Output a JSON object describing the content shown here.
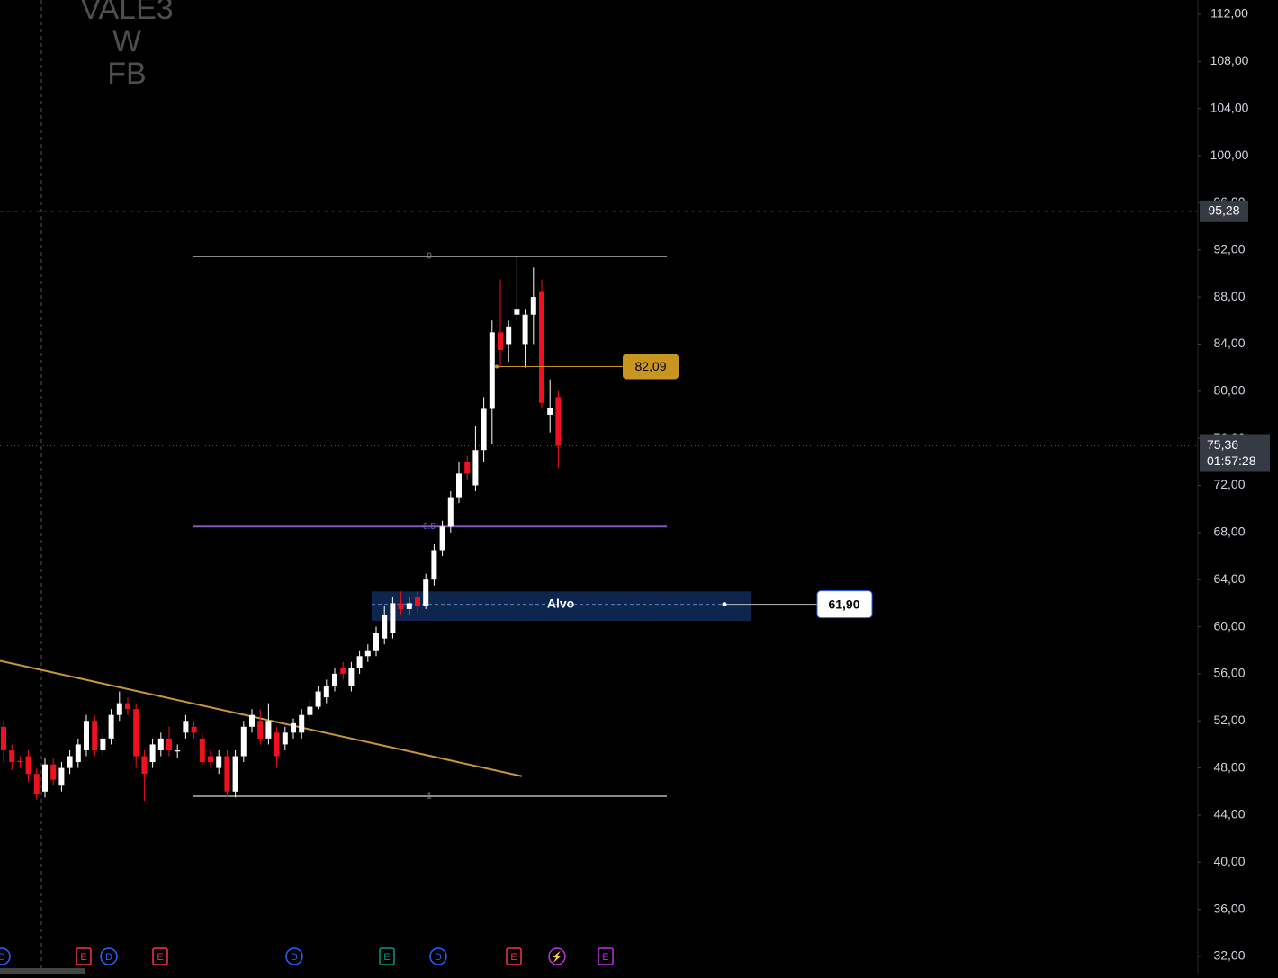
{
  "chart_data": {
    "type": "candlestick",
    "title_lines": [
      "VALE3",
      "W",
      "FB"
    ],
    "open": [
      51.5,
      49.5,
      48.6,
      49,
      47.5,
      46,
      48.3,
      46.5,
      48,
      48.5,
      49.5,
      52,
      49.5,
      50.5,
      52.5,
      53.5,
      53,
      49,
      48.5,
      49.5,
      50.5,
      49.4,
      51,
      51.5,
      50.5,
      49,
      48,
      49,
      46,
      49,
      51.5,
      52,
      50.5,
      51,
      50,
      51,
      51,
      52.5,
      53.2,
      54,
      55,
      56.5,
      55,
      56.5,
      57.5,
      58,
      59,
      59.5,
      62,
      61.5,
      62.5,
      61.8,
      64,
      66.5,
      68.5,
      71,
      74,
      72,
      75,
      78.5,
      85,
      84,
      86.5,
      84,
      86.5,
      88.5,
      78,
      79.5
    ],
    "high": [
      52,
      50,
      49,
      49.5,
      48,
      48.8,
      48.8,
      48.5,
      49.5,
      50.5,
      52.5,
      52.5,
      51,
      53,
      54.5,
      54,
      53.5,
      49.5,
      50.5,
      51,
      51.5,
      50,
      52.5,
      52,
      51,
      49.5,
      49.5,
      49.5,
      49.5,
      52,
      53,
      53,
      53.5,
      51.5,
      51.5,
      52.2,
      53,
      53.8,
      55,
      55.5,
      56.5,
      57,
      57,
      58,
      58.5,
      60,
      61.8,
      62.5,
      63,
      62.5,
      63,
      64.5,
      67,
      69,
      71.5,
      74,
      74.5,
      77,
      79.5,
      86,
      89.5,
      86,
      91.5,
      87,
      90.5,
      89.5,
      81,
      80
    ],
    "low": [
      48.5,
      47.8,
      48,
      46.8,
      45.3,
      45.5,
      46.5,
      46,
      47.5,
      48,
      49,
      49,
      49,
      50,
      52,
      52.5,
      48,
      45.2,
      48,
      49,
      49,
      48.8,
      50.5,
      50.5,
      48,
      48,
      47.5,
      45.5,
      45.5,
      48.5,
      51,
      50,
      50,
      48,
      49.5,
      50.5,
      50.5,
      52,
      53,
      53.5,
      54.5,
      55.5,
      54.5,
      56,
      57,
      57.5,
      58.5,
      59,
      61,
      61,
      61.2,
      61.5,
      63.5,
      66,
      68,
      70.5,
      72.5,
      71.5,
      74,
      75.5,
      82,
      82.5,
      86,
      82,
      84,
      78.5,
      76.5,
      73.5
    ],
    "close": [
      49.5,
      48.5,
      48.5,
      47.5,
      45.8,
      48.3,
      47,
      48,
      49,
      50,
      52,
      49.5,
      50.5,
      52.5,
      53.5,
      53,
      49,
      47.5,
      50,
      50.5,
      49.5,
      49.5,
      52,
      51,
      48.5,
      48.5,
      49,
      46,
      49,
      51.5,
      52.5,
      50.5,
      52,
      49,
      51,
      51.8,
      52.5,
      53.2,
      54.5,
      55,
      56,
      56,
      56.5,
      57.5,
      58,
      59.5,
      61,
      62,
      61.5,
      62,
      61.8,
      64,
      66.5,
      68.5,
      71,
      73,
      73,
      75,
      78.5,
      85,
      83.5,
      85.5,
      87,
      86.5,
      88,
      79,
      78.6,
      75.36
    ],
    "up_color": "#ffffff",
    "down_color": "#f0101e",
    "ylim": [
      32,
      112
    ],
    "yticks": [
      {
        "value": 32,
        "label": "32,00"
      },
      {
        "value": 36,
        "label": "36,00"
      },
      {
        "value": 40,
        "label": "40,00"
      },
      {
        "value": 44,
        "label": "44,00"
      },
      {
        "value": 48,
        "label": "48,00"
      },
      {
        "value": 52,
        "label": "52,00"
      },
      {
        "value": 56,
        "label": "56,00"
      },
      {
        "value": 60,
        "label": "60,00"
      },
      {
        "value": 64,
        "label": "64,00"
      },
      {
        "value": 68,
        "label": "68,00"
      },
      {
        "value": 72,
        "label": "72,00"
      },
      {
        "value": 76,
        "label": "76,00"
      },
      {
        "value": 80,
        "label": "80,00"
      },
      {
        "value": 84,
        "label": "84,00"
      },
      {
        "value": 88,
        "label": "88,00"
      },
      {
        "value": 92,
        "label": "92,00"
      },
      {
        "value": 96,
        "label": "96,00"
      },
      {
        "value": 100,
        "label": "100,00"
      },
      {
        "value": 104,
        "label": "104,00"
      },
      {
        "value": 108,
        "label": "108,00"
      },
      {
        "value": 112,
        "label": "112,00"
      }
    ],
    "fib_levels": [
      {
        "value": 91.45,
        "label": "0",
        "color": "#888888"
      },
      {
        "value": 68.5,
        "label": "0.5",
        "color": "#7e57c2"
      },
      {
        "value": 45.6,
        "label": "1",
        "color": "#888888"
      }
    ],
    "trendline": {
      "values": [
        57.1,
        47.3
      ],
      "color": "#c8963c"
    },
    "price_marker": {
      "value": 82.09,
      "label": "82,09",
      "color": "#c8961e"
    },
    "target_zone": {
      "label": "Alvo",
      "top": 63,
      "bottom": 60.5,
      "line": {
        "value": 61.9,
        "label": "61,90"
      }
    },
    "crosshair": {
      "value": 95.28,
      "label": "95,28"
    },
    "last_price": {
      "value": 75.36,
      "label": "75,36",
      "countdown": "01:57:28"
    },
    "events": [
      "D",
      "E",
      "D",
      "E",
      "D",
      "E",
      "D",
      "E",
      "⚡",
      "E"
    ]
  }
}
